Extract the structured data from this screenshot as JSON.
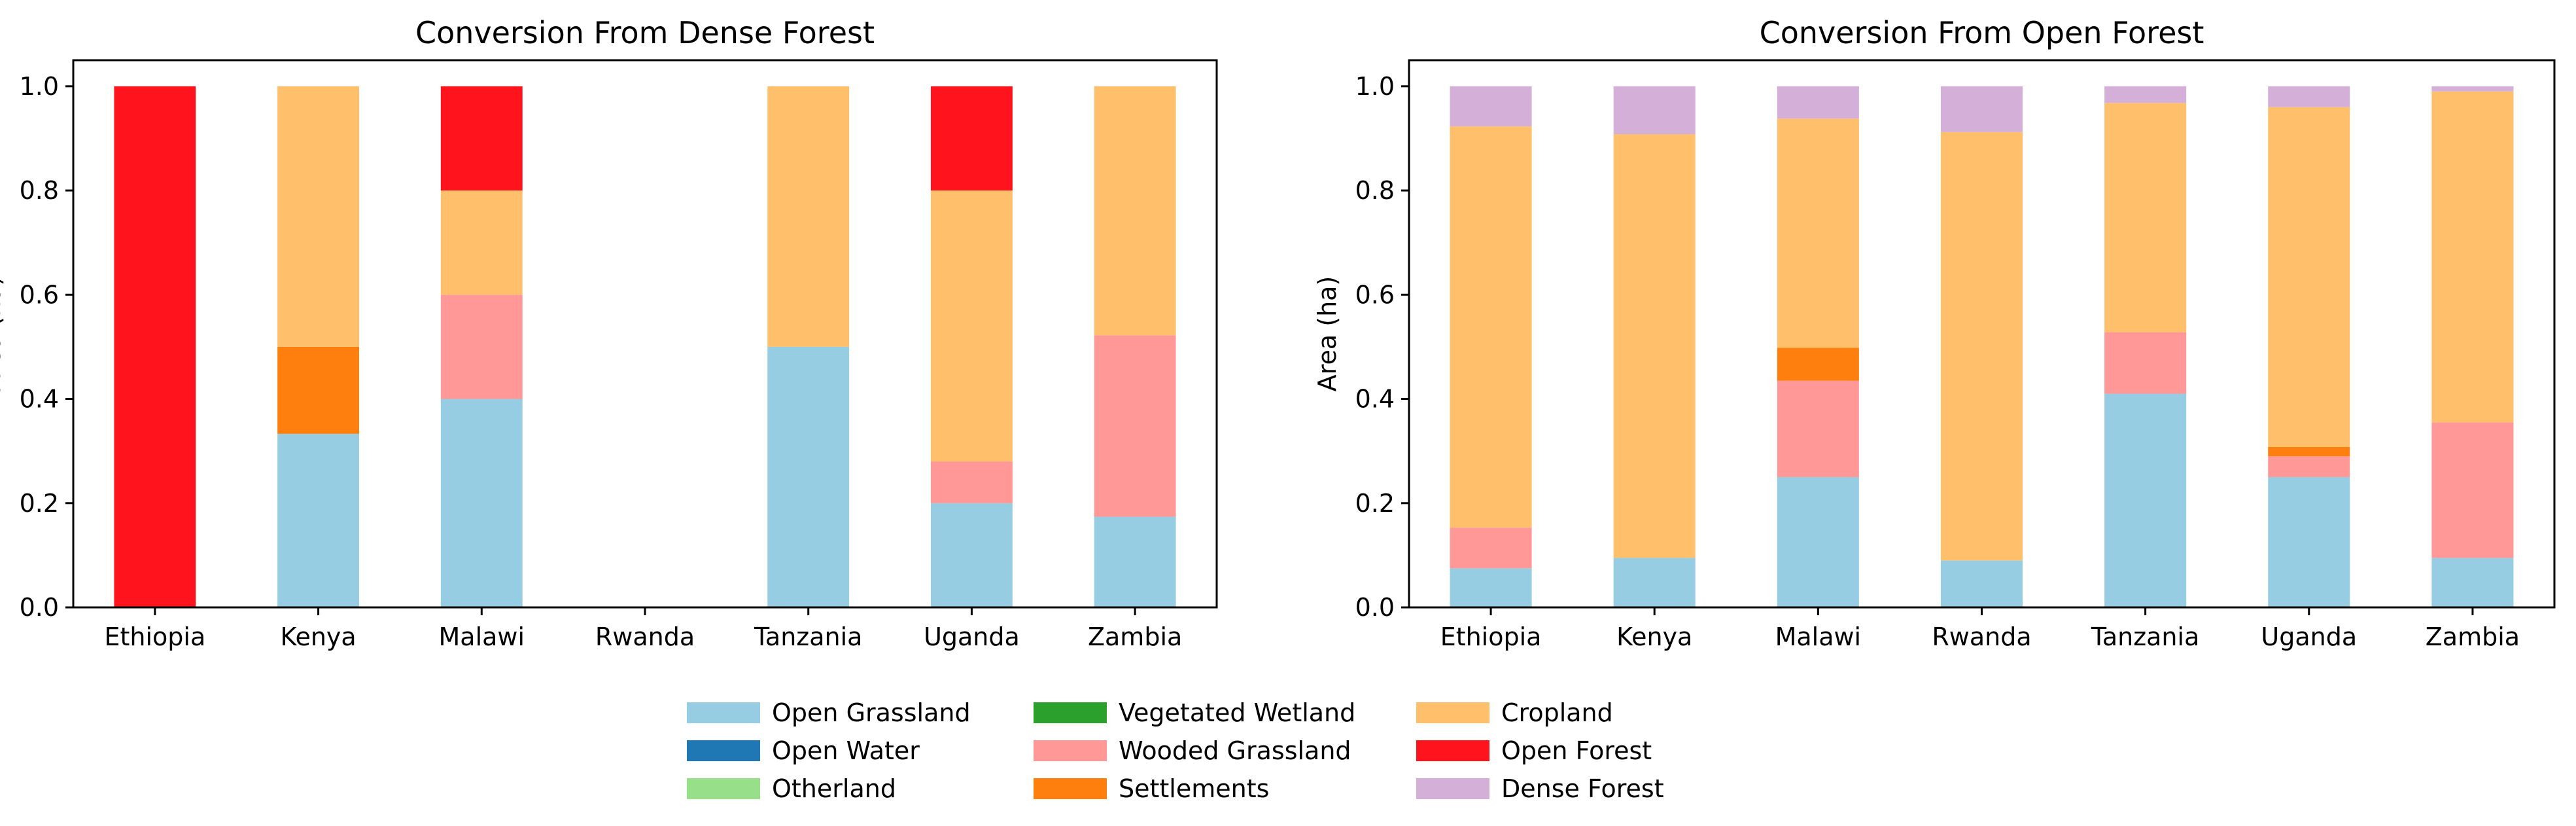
{
  "legend": {
    "placement": "bottom-center",
    "items": [
      {
        "label": "Open Grassland",
        "color": "#96cde2"
      },
      {
        "label": "Open Water",
        "color": "#1f77b4"
      },
      {
        "label": "Otherland",
        "color": "#98df8a"
      },
      {
        "label": "Vegetated Wetland",
        "color": "#2ca02c"
      },
      {
        "label": "Wooded Grassland",
        "color": "#ff9896"
      },
      {
        "label": "Settlements",
        "color": "#ff7f0e"
      },
      {
        "label": "Cropland",
        "color": "#ffbf6b"
      },
      {
        "label": "Open Forest",
        "color": "#ff141e"
      },
      {
        "label": "Dense Forest",
        "color": "#d4b0d9"
      }
    ]
  },
  "chart_data": [
    {
      "type": "bar",
      "stacked": true,
      "title": "Conversion From Dense Forest",
      "xlabel": "",
      "ylabel": "Area (ha)",
      "ylim": [
        0,
        1.05
      ],
      "yticks": [
        "0.0",
        "0.2",
        "0.4",
        "0.6",
        "0.8",
        "1.0"
      ],
      "categories": [
        "Ethiopia",
        "Kenya",
        "Malawi",
        "Rwanda",
        "Tanzania",
        "Uganda",
        "Zambia"
      ],
      "series": [
        {
          "name": "Open Grassland",
          "color": "#96cde2",
          "values": [
            0,
            0.333,
            0.4,
            0,
            0.5,
            0.2,
            0.174
          ]
        },
        {
          "name": "Open Water",
          "color": "#1f77b4",
          "values": [
            0,
            0,
            0,
            0,
            0,
            0,
            0
          ]
        },
        {
          "name": "Otherland",
          "color": "#98df8a",
          "values": [
            0,
            0,
            0,
            0,
            0,
            0,
            0
          ]
        },
        {
          "name": "Vegetated Wetland",
          "color": "#2ca02c",
          "values": [
            0,
            0,
            0,
            0,
            0,
            0,
            0
          ]
        },
        {
          "name": "Wooded Grassland",
          "color": "#ff9896",
          "values": [
            0,
            0,
            0.2,
            0,
            0,
            0.08,
            0.348
          ]
        },
        {
          "name": "Settlements",
          "color": "#ff7f0e",
          "values": [
            0,
            0.167,
            0,
            0,
            0,
            0,
            0
          ]
        },
        {
          "name": "Cropland",
          "color": "#ffbf6b",
          "values": [
            0,
            0.5,
            0.2,
            0,
            0.5,
            0.52,
            0.478
          ]
        },
        {
          "name": "Open Forest",
          "color": "#ff141e",
          "values": [
            1.0,
            0,
            0.2,
            0,
            0,
            0.2,
            0
          ]
        },
        {
          "name": "Dense Forest",
          "color": "#d4b0d9",
          "values": [
            0,
            0,
            0,
            0,
            0,
            0,
            0
          ]
        }
      ]
    },
    {
      "type": "bar",
      "stacked": true,
      "title": "Conversion From Open Forest",
      "xlabel": "",
      "ylabel": "Area (ha)",
      "ylim": [
        0,
        1.05
      ],
      "yticks": [
        "0.0",
        "0.2",
        "0.4",
        "0.6",
        "0.8",
        "1.0"
      ],
      "categories": [
        "Ethiopia",
        "Kenya",
        "Malawi",
        "Rwanda",
        "Tanzania",
        "Uganda",
        "Zambia"
      ],
      "series": [
        {
          "name": "Open Grassland",
          "color": "#96cde2",
          "values": [
            0.075,
            0.095,
            0.25,
            0.09,
            0.41,
            0.25,
            0.095
          ]
        },
        {
          "name": "Open Water",
          "color": "#1f77b4",
          "values": [
            0,
            0,
            0,
            0,
            0,
            0,
            0
          ]
        },
        {
          "name": "Otherland",
          "color": "#98df8a",
          "values": [
            0,
            0,
            0,
            0,
            0,
            0,
            0
          ]
        },
        {
          "name": "Vegetated Wetland",
          "color": "#2ca02c",
          "values": [
            0,
            0,
            0,
            0,
            0,
            0,
            0
          ]
        },
        {
          "name": "Wooded Grassland",
          "color": "#ff9896",
          "values": [
            0.078,
            0,
            0.185,
            0,
            0.118,
            0.04,
            0.26
          ]
        },
        {
          "name": "Settlements",
          "color": "#ff7f0e",
          "values": [
            0,
            0,
            0.063,
            0,
            0,
            0.018,
            0
          ]
        },
        {
          "name": "Cropland",
          "color": "#ffbf6b",
          "values": [
            0.77,
            0.813,
            0.44,
            0.822,
            0.44,
            0.652,
            0.635
          ]
        },
        {
          "name": "Open Forest",
          "color": "#ff141e",
          "values": [
            0,
            0,
            0,
            0,
            0,
            0,
            0
          ]
        },
        {
          "name": "Dense Forest",
          "color": "#d4b0d9",
          "values": [
            0.077,
            0.092,
            0.062,
            0.088,
            0.032,
            0.04,
            0.01
          ]
        }
      ]
    }
  ]
}
